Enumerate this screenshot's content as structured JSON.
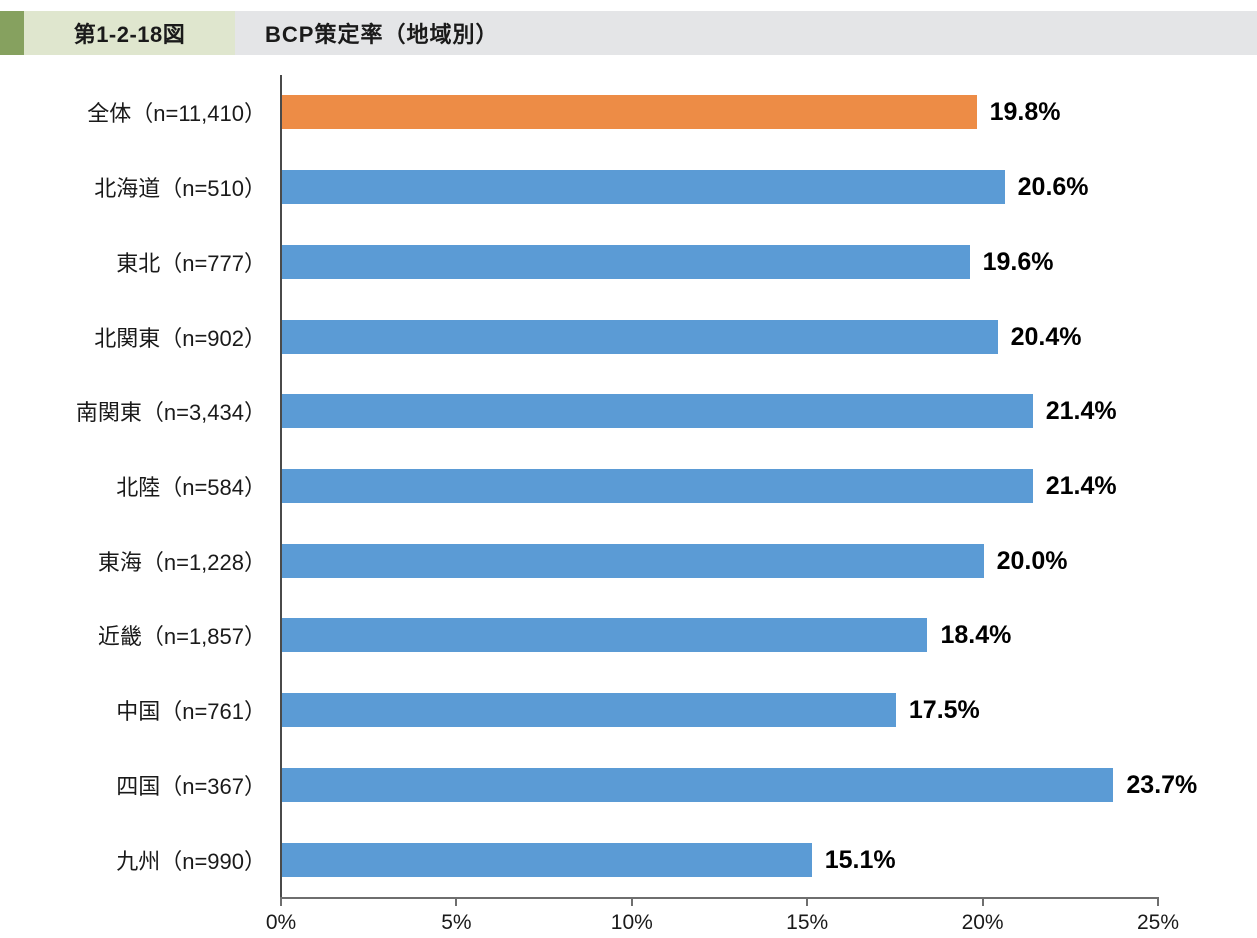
{
  "header": {
    "figure_label": "第1-2-18図",
    "title": "BCP策定率（地域別）",
    "accent_dark_green": "#86a15f",
    "accent_light_green": "#dfe6ce",
    "strip_gray": "#e4e5e7"
  },
  "chart_data": {
    "type": "bar",
    "orientation": "horizontal",
    "title": "BCP策定率（地域別）",
    "categories": [
      "全体（n=11,410）",
      "北海道（n=510）",
      "東北（n=777）",
      "北関東（n=902）",
      "南関東（n=3,434）",
      "北陸（n=584）",
      "東海（n=1,228）",
      "近畿（n=1,857）",
      "中国（n=761）",
      "四国（n=367）",
      "九州（n=990）"
    ],
    "values": [
      19.8,
      20.6,
      19.6,
      20.4,
      21.4,
      21.4,
      20.0,
      18.4,
      17.5,
      23.7,
      15.1
    ],
    "value_labels": [
      "19.8%",
      "20.6%",
      "19.6%",
      "20.4%",
      "21.4%",
      "21.4%",
      "20.0%",
      "18.4%",
      "17.5%",
      "23.7%",
      "15.1%"
    ],
    "highlight_index": 0,
    "bar_color_default": "#5b9bd5",
    "bar_color_highlight": "#ed8c46",
    "x_ticks": [
      0,
      5,
      10,
      15,
      20,
      25
    ],
    "x_tick_labels": [
      "0%",
      "5%",
      "10%",
      "15%",
      "20%",
      "25%"
    ],
    "xlim": [
      0,
      25
    ],
    "grid": false,
    "legend": false
  }
}
